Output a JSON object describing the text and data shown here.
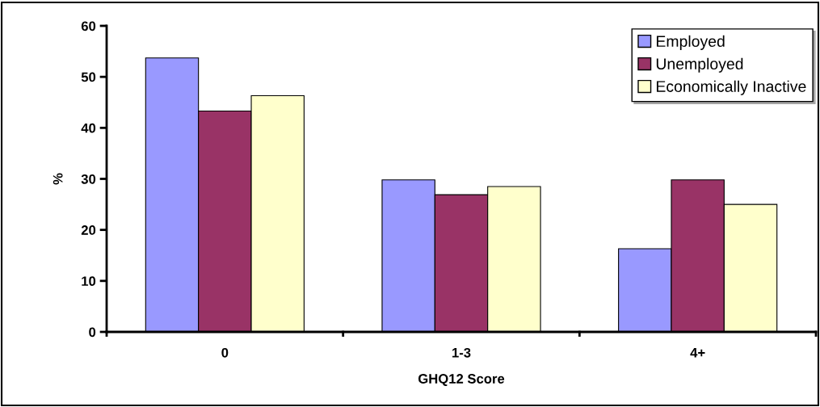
{
  "chart_data": {
    "type": "bar",
    "xlabel": "GHQ12 Score",
    "ylabel": "%",
    "categories": [
      "0",
      "1-3",
      "4+"
    ],
    "series": [
      {
        "name": "Employed",
        "color": "#9999ff",
        "values": [
          53.7,
          29.8,
          16.3
        ]
      },
      {
        "name": "Unemployed",
        "color": "#993366",
        "values": [
          43.3,
          26.9,
          29.8
        ]
      },
      {
        "name": "Economically Inactive",
        "color": "#ffffcc",
        "values": [
          46.3,
          28.5,
          25.0
        ]
      }
    ],
    "ylim": [
      0,
      60
    ],
    "yticks": [
      0,
      10,
      20,
      30,
      40,
      50,
      60
    ],
    "grid": false,
    "legend": "top right"
  }
}
